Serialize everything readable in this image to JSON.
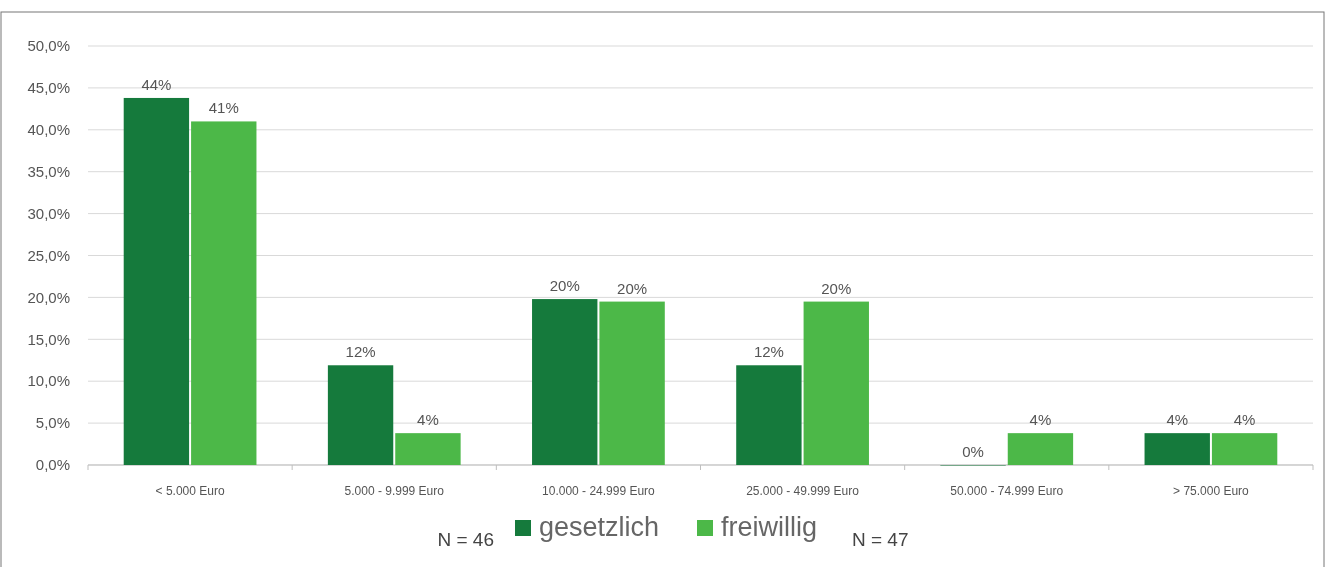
{
  "chart_data": {
    "type": "bar",
    "categories": [
      "< 5.000 Euro",
      "5.000 - 9.999 Euro",
      "10.000 - 24.999 Euro",
      "25.000 - 49.999 Euro",
      "50.000 - 74.999 Euro",
      "> 75.000 Euro"
    ],
    "series": [
      {
        "name": "gesetzlich",
        "color": "#157a3c",
        "values": [
          43.8,
          11.9,
          19.8,
          11.9,
          0,
          3.8
        ],
        "value_labels": [
          "44%",
          "12%",
          "20%",
          "12%",
          "0%",
          "4%"
        ]
      },
      {
        "name": "freiwillig",
        "color": "#4cb848",
        "values": [
          41.0,
          3.8,
          19.5,
          19.5,
          3.8,
          3.8
        ],
        "value_labels": [
          "41%",
          "4%",
          "20%",
          "20%",
          "4%",
          "4%"
        ]
      }
    ],
    "ylim": [
      0,
      50
    ],
    "yticks": [
      {
        "value": 0,
        "label": "0,0%"
      },
      {
        "value": 5,
        "label": "5,0%"
      },
      {
        "value": 10,
        "label": "10,0%"
      },
      {
        "value": 15,
        "label": "15,0%"
      },
      {
        "value": 20,
        "label": "20,0%"
      },
      {
        "value": 25,
        "label": "25,0%"
      },
      {
        "value": 30,
        "label": "30,0%"
      },
      {
        "value": 35,
        "label": "35,0%"
      },
      {
        "value": 40,
        "label": "40,0%"
      },
      {
        "value": 45,
        "label": "45,0%"
      },
      {
        "value": 50,
        "label": "50,0%"
      }
    ],
    "grid": "y",
    "legend": "bottom",
    "annotations": [
      "N = 46",
      "N = 47"
    ]
  }
}
